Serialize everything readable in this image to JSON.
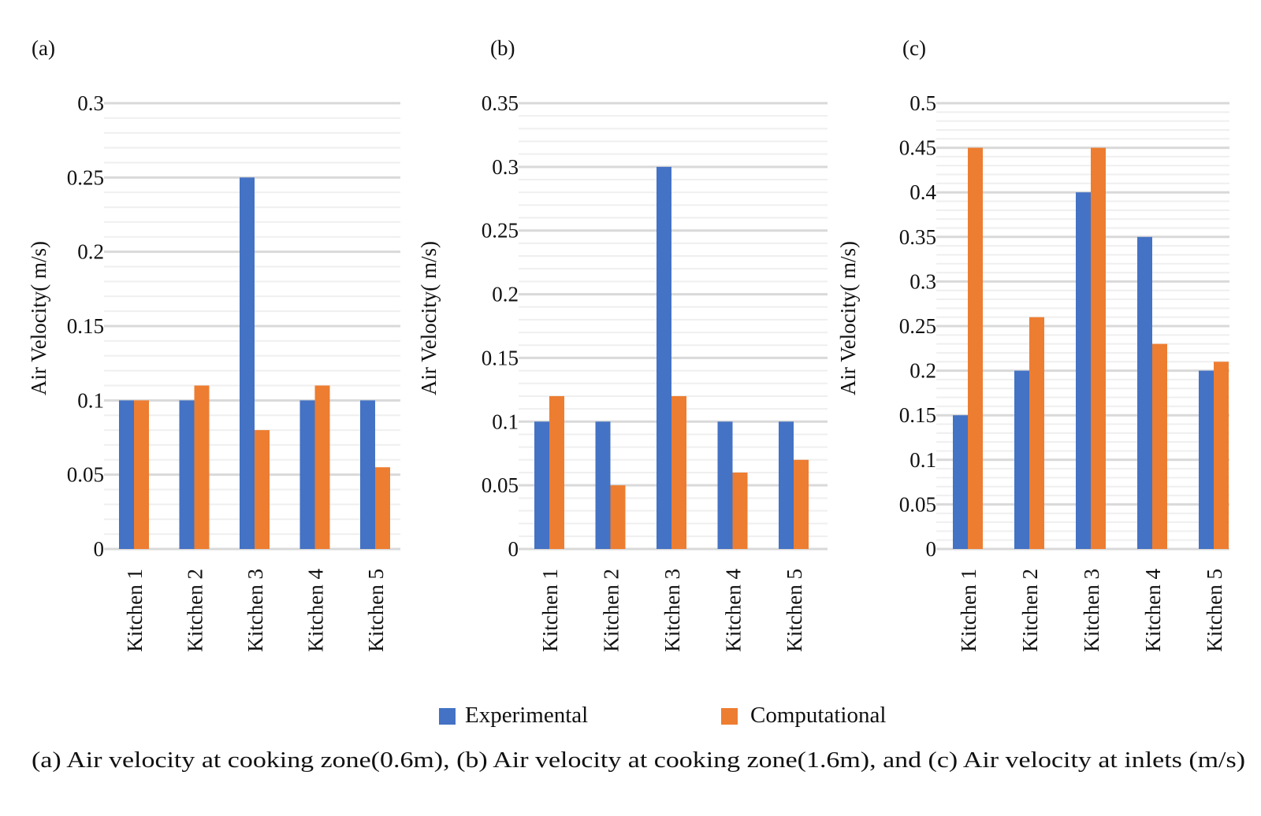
{
  "legend": {
    "experimental": "Experimental",
    "computational": "Computational"
  },
  "caption": "(a) Air velocity at cooking zone(0.6m),  (b) Air velocity at cooking zone(1.6m), and (c) Air velocity at inlets (m/s)",
  "colors": {
    "experimental": "#4472C4",
    "computational": "#ED7D31",
    "gridline": "#d9d9d9"
  },
  "chart_data": [
    {
      "type": "bar",
      "panel_label": "(a)",
      "ylabel": "Air Velocity( m/s)",
      "categories": [
        "Kitchen 1",
        "Kitchen 2",
        "Kitchen 3",
        "Kitchen 4",
        "Kitchen 5"
      ],
      "ylim": [
        0,
        0.3
      ],
      "yticks": [
        "0",
        "0.05",
        "0.1",
        "0.15",
        "0.2",
        "0.25",
        "0.3"
      ],
      "grid": true,
      "series": [
        {
          "name": "Experimental",
          "values": [
            0.1,
            0.1,
            0.25,
            0.1,
            0.1
          ]
        },
        {
          "name": "Computational",
          "values": [
            0.1,
            0.11,
            0.08,
            0.11,
            0.055
          ]
        }
      ]
    },
    {
      "type": "bar",
      "panel_label": "(b)",
      "ylabel": "Air Velocity( m/s)",
      "categories": [
        "Kitchen 1",
        "Kitchen 2",
        "Kitchen 3",
        "Kitchen 4",
        "Kitchen 5"
      ],
      "ylim": [
        0,
        0.35
      ],
      "yticks": [
        "0",
        "0.05",
        "0.1",
        "0.15",
        "0.2",
        "0.25",
        "0.3",
        "0.35"
      ],
      "grid": true,
      "series": [
        {
          "name": "Experimental",
          "values": [
            0.1,
            0.1,
            0.3,
            0.1,
            0.1
          ]
        },
        {
          "name": "Computational",
          "values": [
            0.12,
            0.05,
            0.12,
            0.06,
            0.07
          ]
        }
      ]
    },
    {
      "type": "bar",
      "panel_label": "(c)",
      "ylabel": "Air Velocity( m/s)",
      "categories": [
        "Kitchen 1",
        "Kitchen 2",
        "Kitchen 3",
        "Kitchen 4",
        "Kitchen 5"
      ],
      "ylim": [
        0,
        0.5
      ],
      "yticks": [
        "0",
        "0.05",
        "0.1",
        "0.15",
        "0.2",
        "0.25",
        "0.3",
        "0.35",
        "0.4",
        "0.45",
        "0.5"
      ],
      "grid": true,
      "series": [
        {
          "name": "Experimental",
          "values": [
            0.15,
            0.2,
            0.4,
            0.35,
            0.2
          ]
        },
        {
          "name": "Computational",
          "values": [
            0.45,
            0.26,
            0.45,
            0.23,
            0.21
          ]
        }
      ]
    }
  ]
}
